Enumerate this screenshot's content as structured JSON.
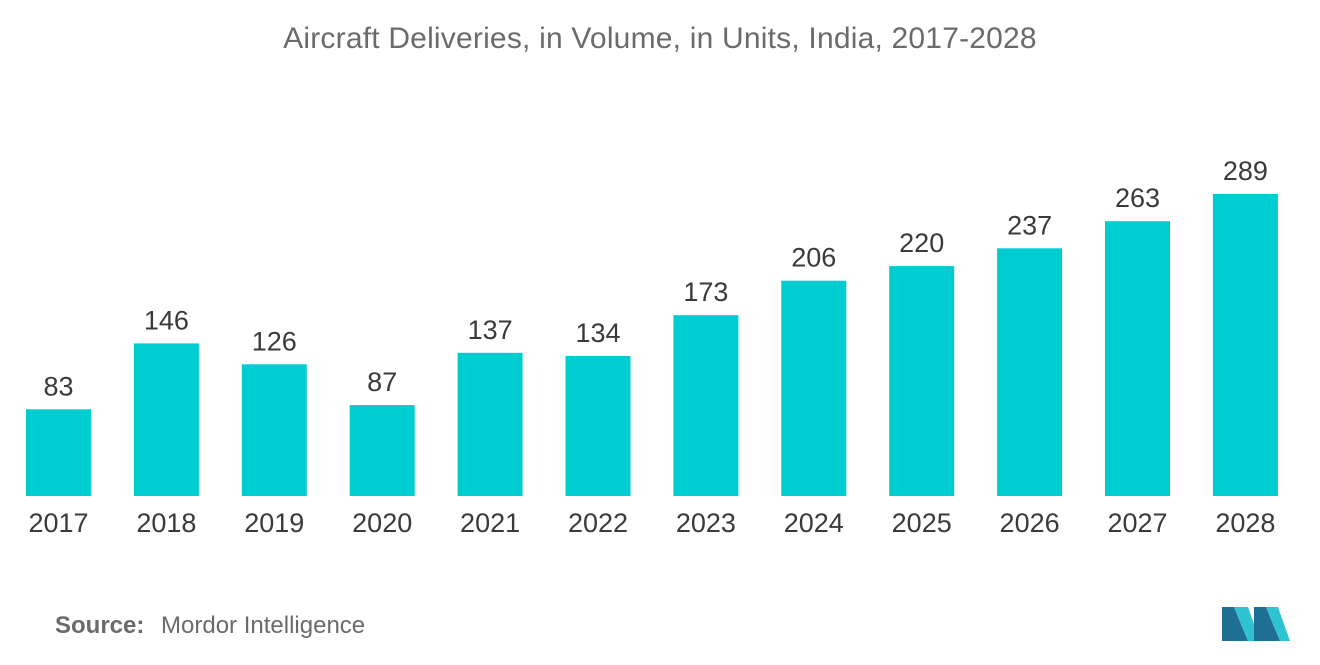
{
  "chart_data": {
    "type": "bar",
    "title": "Aircraft Deliveries, in Volume, in Units, India, 2017-2028",
    "xlabel": "",
    "ylabel": "",
    "categories": [
      "2017",
      "2018",
      "2019",
      "2020",
      "2021",
      "2022",
      "2023",
      "2024",
      "2025",
      "2026",
      "2027",
      "2028"
    ],
    "values": [
      83,
      146,
      126,
      87,
      137,
      134,
      173,
      206,
      220,
      237,
      263,
      289
    ],
    "ylim": [
      0,
      289
    ],
    "grid": false,
    "legend": "none",
    "bar_color": "#00cdd2"
  },
  "source": {
    "label": "Source:",
    "value": "Mordor Intelligence"
  },
  "logo": {
    "icon": "mordor-intelligence-logo-icon",
    "color_dark": "#1f6f95",
    "color_light": "#2fc3cf"
  }
}
